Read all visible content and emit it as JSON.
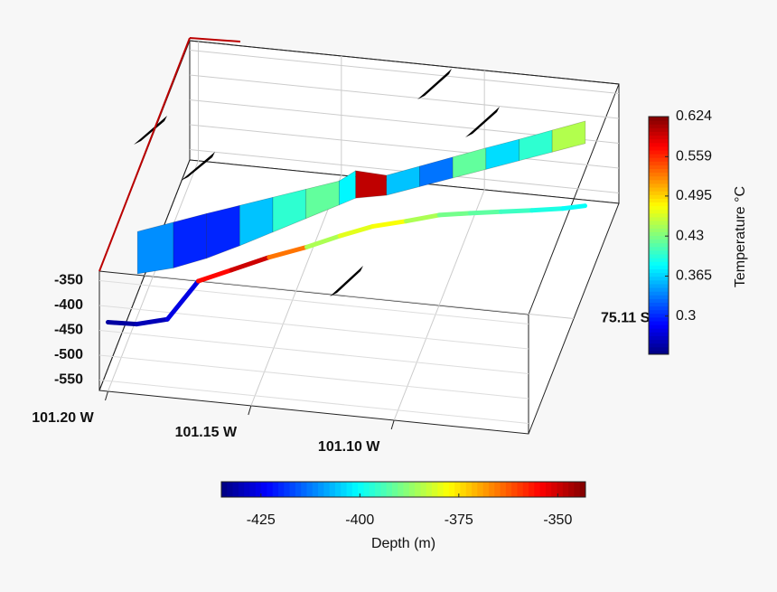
{
  "chart_data": {
    "type": "curtain3d",
    "colormap": "jet",
    "grid": true,
    "xlim": [
      101.203,
      101.053
    ],
    "xticks": [
      {
        "value": 101.2,
        "label": "101.20 W"
      },
      {
        "value": 101.15,
        "label": "101.15 W"
      },
      {
        "value": 101.1,
        "label": "101.10 W"
      }
    ],
    "ylim": [
      75.1,
      75.12
    ],
    "yticks": [
      {
        "value": 75.11,
        "label": "75.11 S"
      }
    ],
    "zlim": [
      -571,
      -331
    ],
    "zticks": [
      -350,
      -400,
      -450,
      -500,
      -550
    ],
    "curtain": {
      "lon": [
        101.196,
        101.185,
        101.175,
        101.165,
        101.155,
        101.145,
        101.135,
        101.13,
        101.12,
        101.11,
        101.1,
        101.09,
        101.08,
        101.07,
        101.06
      ],
      "lat": [
        75.104,
        75.105,
        75.106,
        75.107,
        75.108,
        75.109,
        75.11,
        75.1105,
        75.111,
        75.112,
        75.113,
        75.114,
        75.115,
        75.116,
        75.117
      ],
      "top": [
        -340,
        -338,
        -338,
        -339,
        -340,
        -341,
        -342,
        -330,
        -345,
        -344,
        -343,
        -342,
        -342,
        -341,
        -340
      ],
      "bottom": [
        -425,
        -430,
        -428,
        -420,
        -410,
        -400,
        -390,
        -385,
        -385,
        -385,
        -385,
        -385,
        -385,
        -385,
        -385
      ],
      "temperature": [
        0.34,
        0.3,
        0.3,
        0.36,
        0.4,
        0.42,
        0.38,
        0.6,
        0.36,
        0.33,
        0.42,
        0.37,
        0.4,
        0.45,
        0.44
      ]
    },
    "track": {
      "lon": [
        101.2,
        101.19,
        101.18,
        101.17,
        101.16,
        101.15,
        101.14,
        101.13,
        101.12,
        101.11,
        101.1,
        101.09,
        101.08,
        101.07,
        101.06,
        101.053
      ],
      "lat": [
        75.1,
        75.1,
        75.1005,
        75.101,
        75.102,
        75.104,
        75.106,
        75.107,
        75.108,
        75.109,
        75.11,
        75.1105,
        75.111,
        75.1115,
        75.112,
        75.1125
      ],
      "depth": [
        -432,
        -430,
        -426,
        -355,
        -350,
        -365,
        -385,
        -380,
        -378,
        -385,
        -390,
        -392,
        -395,
        -398,
        -400,
        -402
      ]
    },
    "temperature_colorbar": {
      "label": "Temperature °C",
      "clim": [
        0.238,
        0.624
      ],
      "ticks": [
        0.3,
        0.365,
        0.43,
        0.495,
        0.559,
        0.624
      ]
    },
    "depth_colorbar": {
      "label": "Depth (m)",
      "clim": [
        -435,
        -343
      ],
      "ticks": [
        -425,
        -400,
        -375,
        -350
      ]
    }
  }
}
